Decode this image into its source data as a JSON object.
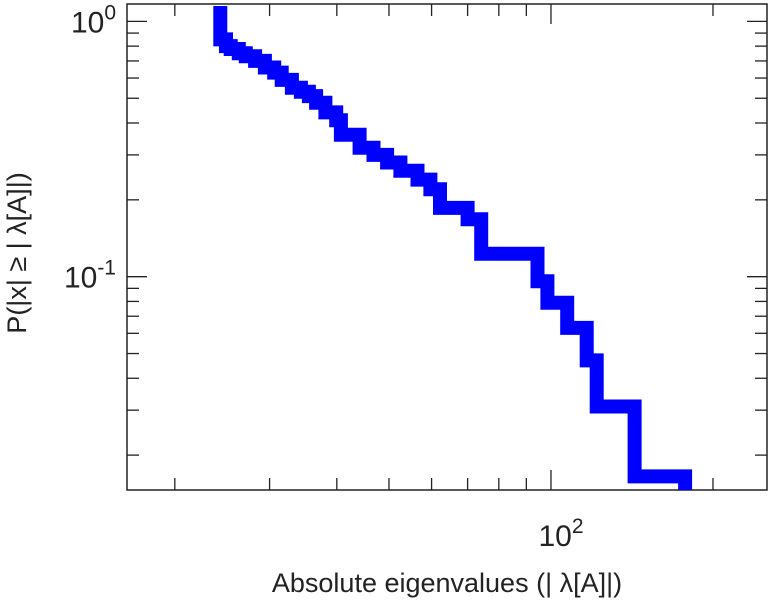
{
  "chart_data": {
    "type": "line",
    "subtype": "step-ccdf",
    "title": "",
    "xlabel": "Absolute eigenvalues (|     λ[A]|)",
    "ylabel": "P(|x|  ≥ | λ[A]|)",
    "xscale": "log",
    "yscale": "log",
    "xlim": [
      16.3,
      252
    ],
    "ylim": [
      0.0146,
      1.17
    ],
    "grid": false,
    "legend": "none",
    "x_tick_labels": [
      {
        "value": 100,
        "base": "10",
        "exp": "2"
      }
    ],
    "y_tick_labels": [
      {
        "value": 1,
        "base": "10",
        "exp": "0"
      },
      {
        "value": 0.1,
        "base": "10",
        "exp": "-1"
      }
    ],
    "series": [
      {
        "color": "#0000ff",
        "x": [
          24.3,
          24.3,
          24.9,
          25.4,
          26.3,
          27.1,
          28.2,
          29.4,
          30.6,
          31.6,
          33.0,
          34.3,
          35.5,
          36.6,
          38.1,
          39.9,
          40.7,
          44.1,
          46.8,
          49.6,
          52.5,
          56.5,
          59.7,
          62.2,
          70.0,
          74.2,
          94.4,
          98.5,
          107.2,
          116.5,
          121.6,
          143.0,
          177.5
        ],
        "y": [
          0.93,
          0.85,
          0.8,
          0.78,
          0.75,
          0.73,
          0.7,
          0.66,
          0.63,
          0.59,
          0.55,
          0.53,
          0.51,
          0.48,
          0.44,
          0.41,
          0.36,
          0.32,
          0.3,
          0.28,
          0.26,
          0.24,
          0.22,
          0.186,
          0.168,
          0.123,
          0.096,
          0.079,
          0.063,
          0.047,
          0.031,
          0.0165,
          0.0146
        ]
      }
    ]
  }
}
